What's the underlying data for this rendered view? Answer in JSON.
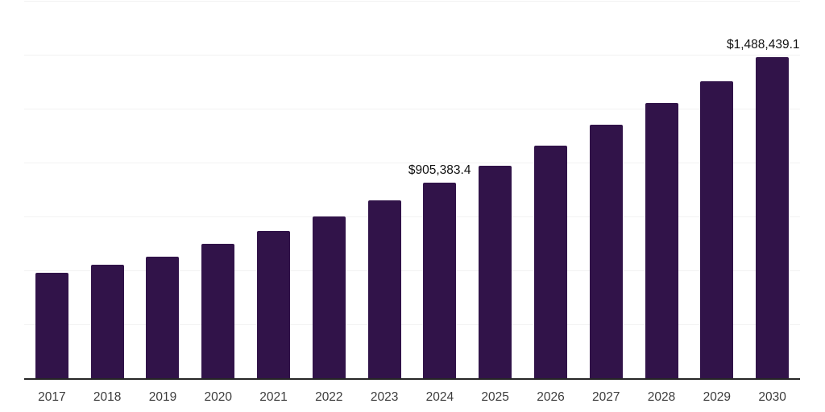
{
  "chart_data": {
    "type": "bar",
    "title": "",
    "xlabel": "",
    "ylabel": "",
    "categories": [
      "2017",
      "2018",
      "2019",
      "2020",
      "2021",
      "2022",
      "2023",
      "2024",
      "2025",
      "2026",
      "2027",
      "2028",
      "2029",
      "2030"
    ],
    "values": [
      489000,
      526000,
      563000,
      623000,
      683000,
      750000,
      825000,
      905383.4,
      985000,
      1078000,
      1175000,
      1276000,
      1377000,
      1488439.1
    ],
    "labeled_points": [
      {
        "index": 7,
        "text": "$905,383.4"
      },
      {
        "index": 13,
        "text": "$1,488,439.1"
      }
    ],
    "ylim": [
      0,
      1750000
    ],
    "gridline_interval": 250000,
    "grid": "horizontal",
    "legend": "none",
    "y_tick_labels_visible": false
  },
  "colors": {
    "bar": "#311349",
    "gridline": "#f2f2f2",
    "axis_line": "#262626",
    "tick_label": "#3d3d3d",
    "data_label": "#111111",
    "background": "#ffffff"
  }
}
